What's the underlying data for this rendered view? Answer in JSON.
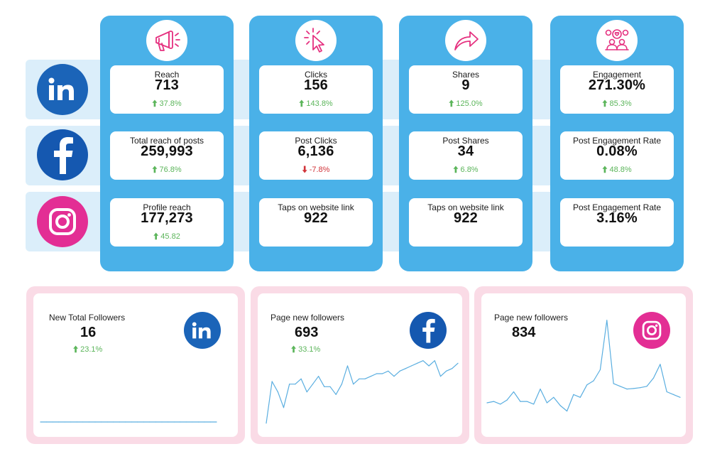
{
  "platforms": [
    "LinkedIn",
    "Facebook",
    "Instagram"
  ],
  "columns": [
    {
      "icon": "megaphone-icon",
      "metrics": [
        {
          "label": "Reach",
          "value": "713",
          "change": "37.8%",
          "direction": "up"
        },
        {
          "label": "Total reach of posts",
          "value": "259,993",
          "change": "76.8%",
          "direction": "up"
        },
        {
          "label": "Profile reach",
          "value": "177,273",
          "change": "45.82",
          "direction": "up"
        }
      ]
    },
    {
      "icon": "cursor-click-icon",
      "metrics": [
        {
          "label": "Clicks",
          "value": "156",
          "change": "143.8%",
          "direction": "up"
        },
        {
          "label": "Post Clicks",
          "value": "6,136",
          "change": "-7.8%",
          "direction": "down"
        },
        {
          "label": "Taps on website link",
          "value": "922",
          "change": "",
          "direction": ""
        }
      ]
    },
    {
      "icon": "share-arrow-icon",
      "metrics": [
        {
          "label": "Shares",
          "value": "9",
          "change": "125.0%",
          "direction": "up"
        },
        {
          "label": "Post Shares",
          "value": "34",
          "change": "6.8%",
          "direction": "up"
        },
        {
          "label": "Taps on website link",
          "value": "922",
          "change": "",
          "direction": ""
        }
      ]
    },
    {
      "icon": "audience-heart-icon",
      "metrics": [
        {
          "label": "Engagement",
          "value": "271.30%",
          "change": "85.3%",
          "direction": "up"
        },
        {
          "label": "Post Engagement Rate",
          "value": "0.08%",
          "change": "48.8%",
          "direction": "up"
        },
        {
          "label": "Post Engagement Rate",
          "value": "3.16%",
          "change": "",
          "direction": ""
        }
      ]
    }
  ],
  "followers": [
    {
      "platform": "LinkedIn",
      "title": "New Total Followers",
      "value": "16",
      "change": "23.1%"
    },
    {
      "platform": "Facebook",
      "title": "Page new followers",
      "value": "693",
      "change": "33.1%"
    },
    {
      "platform": "Instagram",
      "title": "Page new followers",
      "value": "834",
      "change": ""
    }
  ],
  "colors": {
    "column_blue": "#4ab1e8",
    "band_blue": "#dbeefa",
    "linkedin": "#1b64b8",
    "facebook": "#1558b0",
    "instagram": "#e32e94",
    "panel_pink": "#fadbe6",
    "up_green": "#5bb55a",
    "down_red": "#d1343a",
    "spark_line": "#5aaee0"
  },
  "chart_data": [
    {
      "type": "line",
      "title": "New Total Followers",
      "platform": "LinkedIn",
      "x": [
        1,
        2,
        3,
        4,
        5,
        6,
        7,
        8,
        9,
        10,
        11,
        12,
        13,
        14,
        15,
        16,
        17,
        18,
        19,
        20,
        21,
        22,
        23,
        24,
        25,
        26,
        27,
        28,
        29,
        30
      ],
      "values": [
        1,
        1,
        1,
        1,
        1,
        1,
        1,
        1,
        1,
        1,
        1,
        1,
        1,
        1,
        1,
        1,
        1,
        1,
        1,
        1,
        1,
        1,
        1,
        1,
        1,
        1,
        1,
        1,
        1,
        1
      ],
      "ylim": [
        0,
        10
      ]
    },
    {
      "type": "line",
      "title": "Page new followers",
      "platform": "Facebook",
      "x": [
        1,
        2,
        3,
        4,
        5,
        6,
        7,
        8,
        9,
        10,
        11,
        12,
        13,
        14,
        15,
        16,
        17,
        18,
        19,
        20,
        21,
        22,
        23,
        24,
        25,
        26,
        27,
        28,
        29,
        30,
        31,
        32,
        33,
        34
      ],
      "values": [
        2,
        18,
        14,
        8,
        17,
        17,
        19,
        14,
        17,
        20,
        16,
        16,
        13,
        17,
        24,
        17,
        19,
        19,
        20,
        21,
        21,
        22,
        20,
        22,
        23,
        24,
        25,
        26,
        24,
        26,
        20,
        22,
        23,
        25
      ],
      "ylim": [
        0,
        30
      ]
    },
    {
      "type": "line",
      "title": "Page new followers",
      "platform": "Instagram",
      "x": [
        1,
        2,
        3,
        4,
        5,
        6,
        7,
        8,
        9,
        10,
        11,
        12,
        13,
        14,
        15,
        16,
        17,
        18,
        19,
        20,
        21,
        22,
        23,
        24,
        25,
        26,
        27,
        28,
        29,
        30
      ],
      "values": [
        8,
        8.5,
        7.5,
        9,
        12,
        8.5,
        8.5,
        7.5,
        13,
        8,
        10,
        7,
        5,
        11,
        10,
        14.5,
        16,
        20,
        38,
        15,
        14,
        13,
        13.2,
        13.5,
        14,
        17,
        22,
        12,
        11,
        10
      ],
      "ylim": [
        0,
        40
      ]
    }
  ]
}
